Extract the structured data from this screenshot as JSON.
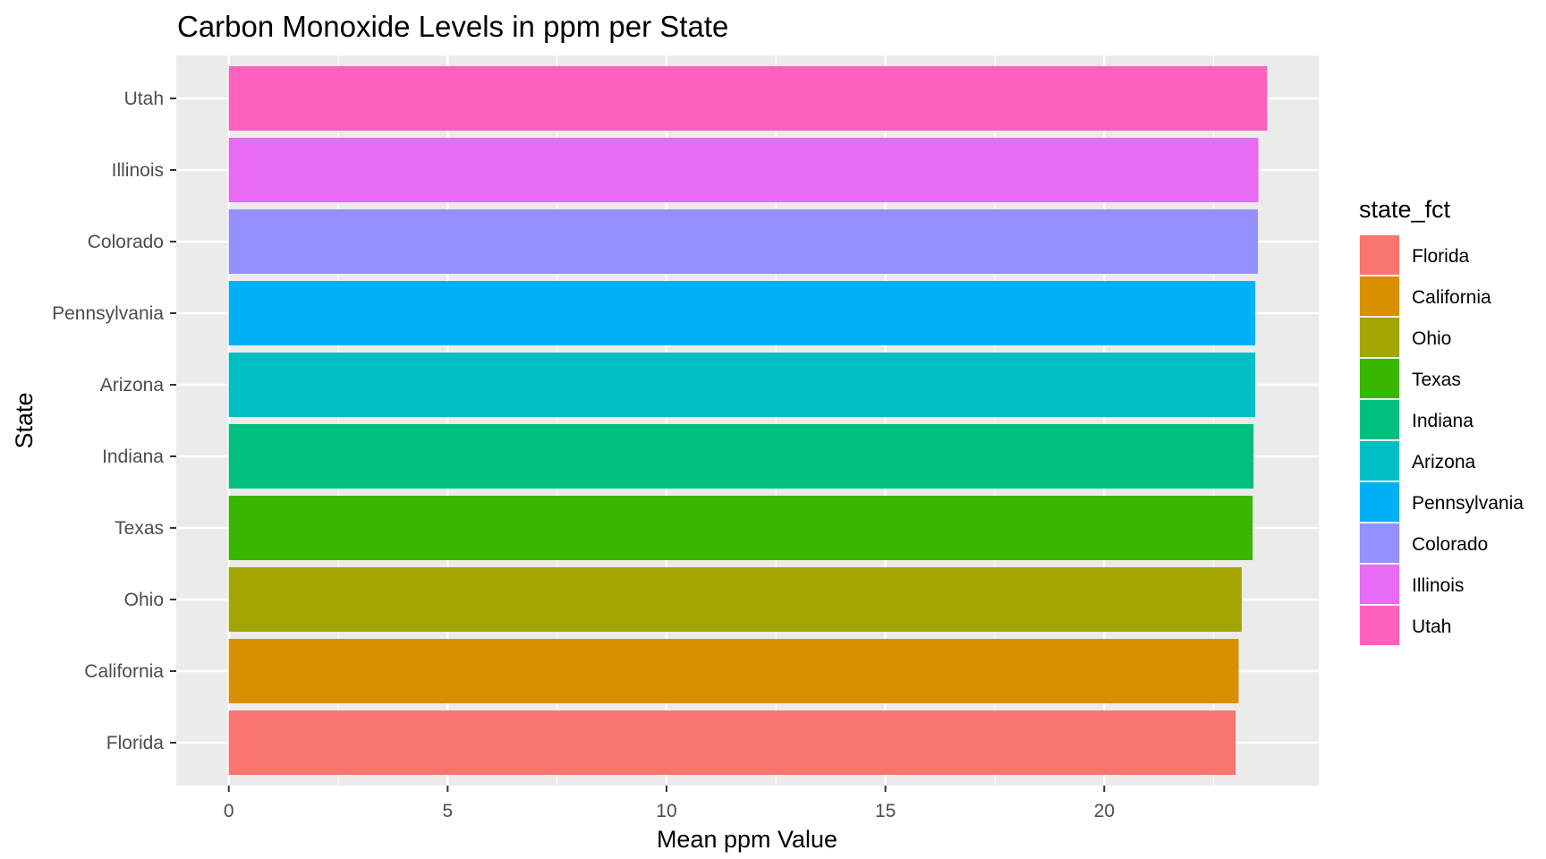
{
  "chart_data": {
    "type": "bar",
    "orientation": "horizontal",
    "title": "Carbon Monoxide Levels in ppm per State",
    "xlabel": "Mean ppm Value",
    "ylabel": "State",
    "xlim": [
      -1.2,
      24.9
    ],
    "x_ticks": [
      0,
      5,
      10,
      15,
      20
    ],
    "x_tick_labels": [
      "0",
      "5",
      "10",
      "15",
      "20"
    ],
    "grid": true,
    "categories": [
      "Florida",
      "California",
      "Ohio",
      "Texas",
      "Indiana",
      "Arizona",
      "Pennsylvania",
      "Colorado",
      "Illinois",
      "Utah"
    ],
    "values": [
      23.0,
      23.07,
      23.14,
      23.39,
      23.41,
      23.45,
      23.45,
      23.51,
      23.52,
      23.72
    ],
    "colors": [
      "#F8766D",
      "#D89000",
      "#A3A500",
      "#39B600",
      "#00BF7D",
      "#00BFC4",
      "#00B0F6",
      "#9590FF",
      "#E76BF3",
      "#FF62BC"
    ],
    "legend": {
      "title": "state_fct",
      "position": "right",
      "entries": [
        "Florida",
        "California",
        "Ohio",
        "Texas",
        "Indiana",
        "Arizona",
        "Pennsylvania",
        "Colorado",
        "Illinois",
        "Utah"
      ]
    }
  }
}
